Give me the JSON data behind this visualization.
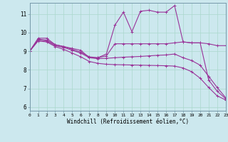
{
  "xlabel": "Windchill (Refroidissement éolien,°C)",
  "bg_color": "#cce8ee",
  "line_color": "#993399",
  "grid_color": "#aad8cc",
  "x_ticks": [
    0,
    1,
    2,
    3,
    4,
    5,
    6,
    7,
    8,
    9,
    10,
    11,
    12,
    13,
    14,
    15,
    16,
    17,
    18,
    19,
    20,
    21,
    22,
    23
  ],
  "y_ticks": [
    6,
    7,
    8,
    9,
    10,
    11
  ],
  "xlim": [
    0,
    23
  ],
  "ylim": [
    5.8,
    11.6
  ],
  "series": [
    {
      "x": [
        0,
        1,
        2,
        3,
        4,
        5,
        6,
        7,
        8,
        9,
        10,
        11,
        12,
        13,
        14,
        15,
        16,
        17,
        18,
        19,
        20,
        21,
        22,
        23
      ],
      "y": [
        9.0,
        9.7,
        9.7,
        9.35,
        9.25,
        9.15,
        9.05,
        8.65,
        8.65,
        8.85,
        10.4,
        11.1,
        10.05,
        11.15,
        11.2,
        11.1,
        11.1,
        11.45,
        9.5,
        9.45,
        9.45,
        7.45,
        6.85,
        6.45
      ],
      "marker": true
    },
    {
      "x": [
        0,
        1,
        2,
        3,
        4,
        5,
        6,
        7,
        8,
        9,
        10,
        11,
        12,
        13,
        14,
        15,
        16,
        17,
        18,
        19,
        20,
        21,
        22,
        23
      ],
      "y": [
        9.0,
        9.65,
        9.6,
        9.35,
        9.25,
        9.1,
        8.95,
        8.7,
        8.65,
        8.75,
        9.4,
        9.4,
        9.4,
        9.4,
        9.4,
        9.4,
        9.4,
        9.45,
        9.5,
        9.45,
        9.45,
        9.4,
        9.3,
        9.3
      ],
      "marker": true
    },
    {
      "x": [
        0,
        1,
        2,
        3,
        4,
        5,
        6,
        7,
        8,
        9,
        10,
        11,
        12,
        13,
        14,
        15,
        16,
        17,
        18,
        19,
        20,
        21,
        22,
        23
      ],
      "y": [
        9.0,
        9.6,
        9.55,
        9.3,
        9.2,
        9.05,
        8.9,
        8.65,
        8.6,
        8.62,
        8.65,
        8.68,
        8.7,
        8.72,
        8.75,
        8.78,
        8.8,
        8.85,
        8.65,
        8.5,
        8.25,
        7.65,
        7.05,
        6.5
      ],
      "marker": true
    },
    {
      "x": [
        0,
        1,
        2,
        3,
        4,
        5,
        6,
        7,
        8,
        9,
        10,
        11,
        12,
        13,
        14,
        15,
        16,
        17,
        18,
        19,
        20,
        21,
        22,
        23
      ],
      "y": [
        9.0,
        9.55,
        9.5,
        9.25,
        9.1,
        8.9,
        8.7,
        8.45,
        8.35,
        8.3,
        8.28,
        8.27,
        8.26,
        8.25,
        8.24,
        8.23,
        8.22,
        8.2,
        8.1,
        7.9,
        7.55,
        7.05,
        6.6,
        6.38
      ],
      "marker": true
    }
  ]
}
